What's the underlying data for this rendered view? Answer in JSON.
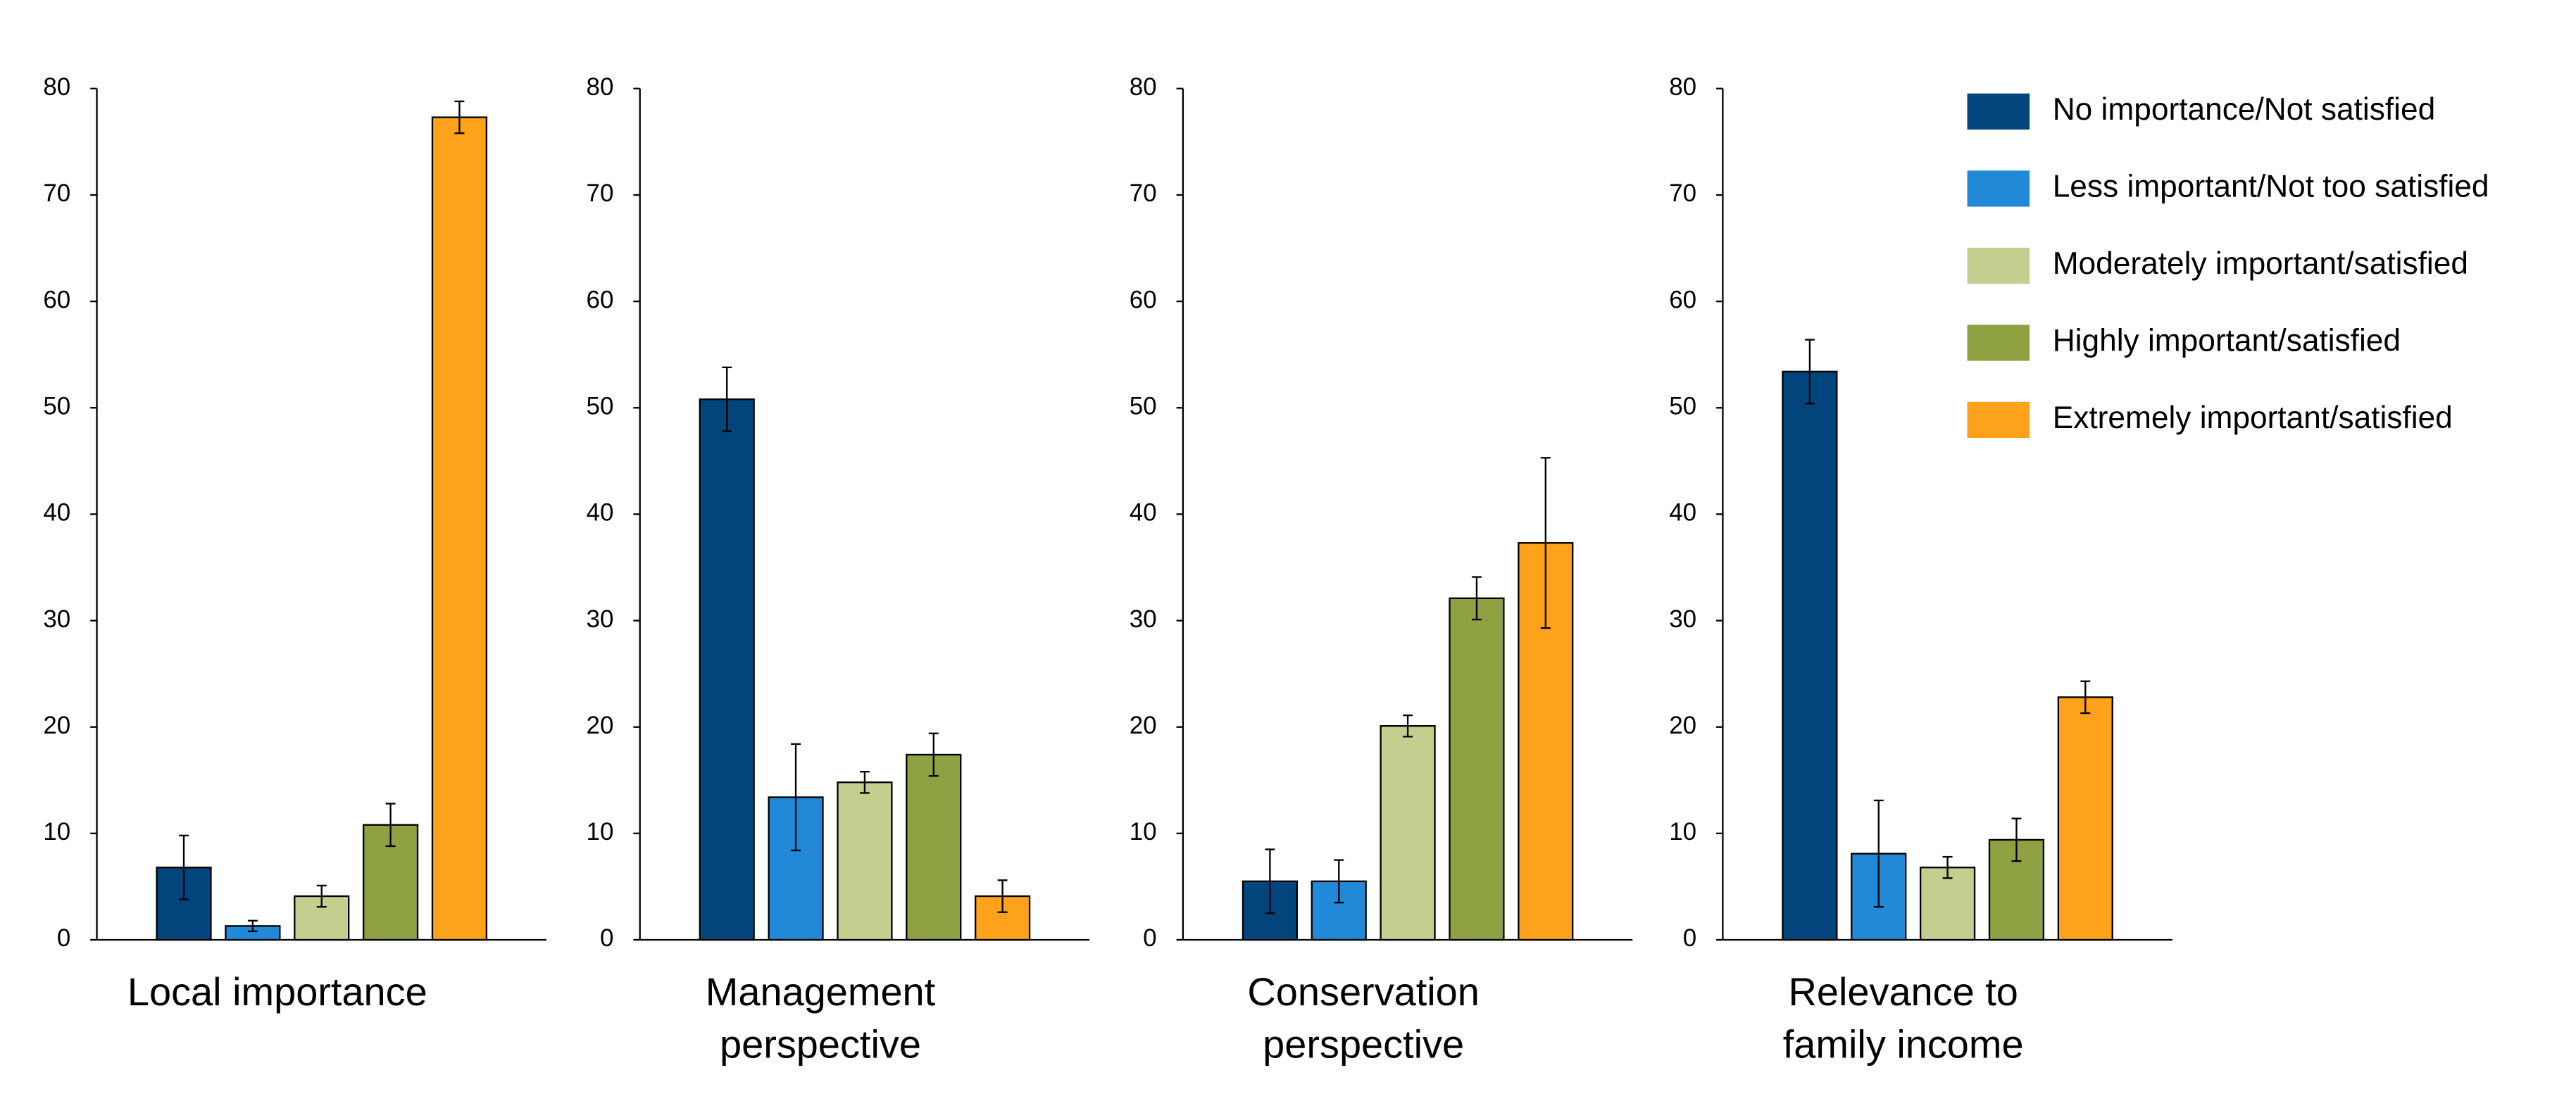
{
  "chart_data": {
    "type": "bar",
    "series": [
      {
        "name": "No importance/Not satisfied",
        "color": "#02457c"
      },
      {
        "name": "Less important/Not too satisfied",
        "color": "#2288d8"
      },
      {
        "name": "Moderately important/satisfied",
        "color": "#c3cf8e"
      },
      {
        "name": "Highly important/satisfied",
        "color": "#8ea243"
      },
      {
        "name": "Extremely important/satisfied",
        "color": "#fda21a"
      }
    ],
    "ylim": [
      0,
      80
    ],
    "yticks": [
      0,
      10,
      20,
      30,
      40,
      50,
      60,
      70,
      80
    ],
    "facets": [
      {
        "title": "Local importance",
        "values": [
          6.8,
          1.3,
          4.1,
          10.8,
          77.3
        ],
        "errors": [
          3,
          0.5,
          1,
          2,
          1.5
        ]
      },
      {
        "title": "Management perspective",
        "values": [
          50.8,
          13.4,
          14.8,
          17.4,
          4.1
        ],
        "errors": [
          3,
          5,
          1,
          2,
          1.5
        ]
      },
      {
        "title": "Conservation perspective",
        "values": [
          5.5,
          5.5,
          20.1,
          32.1,
          37.3
        ],
        "errors": [
          3,
          2,
          1,
          2,
          8
        ]
      },
      {
        "title": "Relevance to family income",
        "values": [
          53.4,
          8.1,
          6.8,
          9.4,
          22.8
        ],
        "errors": [
          3,
          5,
          1,
          2,
          1.5
        ]
      }
    ]
  }
}
